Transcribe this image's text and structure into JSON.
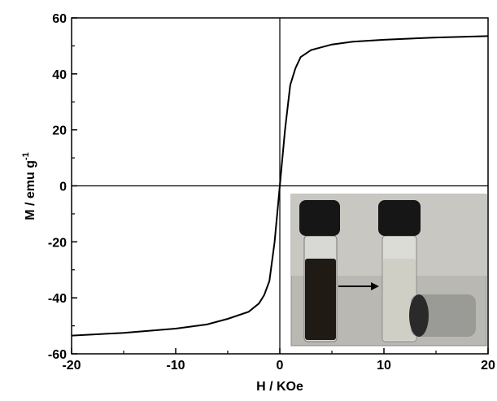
{
  "chart_data": {
    "type": "line",
    "xlabel": "H / KOe",
    "ylabel": "M / emu g",
    "ylabel_superscript": "-1",
    "x": [
      -20,
      -15,
      -10,
      -7,
      -5,
      -3,
      -2,
      -1.5,
      -1,
      -0.5,
      0,
      0.5,
      1,
      1.5,
      2,
      3,
      5,
      7,
      10,
      15,
      20
    ],
    "values": [
      -53.5,
      -52.5,
      -51,
      -49.5,
      -47.5,
      -45,
      -42,
      -39,
      -34,
      -20,
      0,
      20,
      36,
      42,
      46,
      48.5,
      50.5,
      51.5,
      52.2,
      53,
      53.5
    ],
    "color": "#000000",
    "xlim": [
      -20,
      20
    ],
    "ylim": [
      -60,
      60
    ],
    "xticks": [
      -20,
      -10,
      0,
      10,
      20
    ],
    "yticks": [
      -60,
      -40,
      -20,
      0,
      20,
      40,
      60
    ],
    "x_minor_ticks": [
      -15,
      -5,
      5,
      15
    ],
    "y_minor_ticks": [
      -50,
      -30,
      -10,
      10,
      30,
      50
    ]
  }
}
